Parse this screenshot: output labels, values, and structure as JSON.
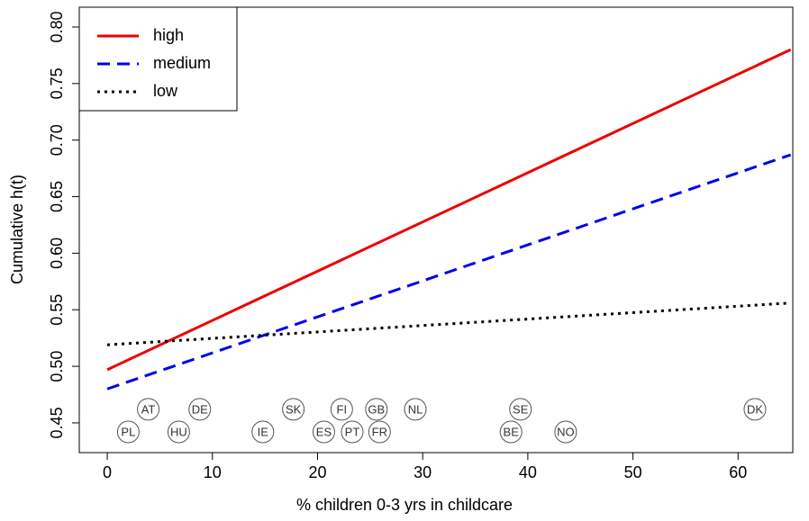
{
  "chart_data": {
    "type": "line",
    "x_label": "% children 0-3 yrs in childcare",
    "y_label": "Cumulative h(t)",
    "x": [
      0,
      65
    ],
    "series": [
      {
        "name": "high",
        "color": "#ee0000",
        "dash": "solid",
        "values": [
          0.497,
          0.78
        ]
      },
      {
        "name": "medium",
        "color": "#0000ee",
        "dash": "dashed",
        "values": [
          0.48,
          0.687
        ]
      },
      {
        "name": "low",
        "color": "#000000",
        "dash": "dotted",
        "values": [
          0.519,
          0.556
        ]
      }
    ],
    "points": [
      {
        "label": "AT",
        "x": 3.9,
        "y": 0.462
      },
      {
        "label": "DE",
        "x": 8.8,
        "y": 0.462
      },
      {
        "label": "SK",
        "x": 17.7,
        "y": 0.462
      },
      {
        "label": "FI",
        "x": 22.3,
        "y": 0.462
      },
      {
        "label": "GB",
        "x": 25.6,
        "y": 0.462
      },
      {
        "label": "NL",
        "x": 29.3,
        "y": 0.462
      },
      {
        "label": "SE",
        "x": 39.3,
        "y": 0.462
      },
      {
        "label": "DK",
        "x": 61.6,
        "y": 0.462
      },
      {
        "label": "PL",
        "x": 2.0,
        "y": 0.442
      },
      {
        "label": "HU",
        "x": 6.8,
        "y": 0.442
      },
      {
        "label": "IE",
        "x": 14.8,
        "y": 0.442
      },
      {
        "label": "ES",
        "x": 20.6,
        "y": 0.442
      },
      {
        "label": "PT",
        "x": 23.3,
        "y": 0.442
      },
      {
        "label": "FR",
        "x": 25.9,
        "y": 0.442
      },
      {
        "label": "BE",
        "x": 38.4,
        "y": 0.442
      },
      {
        "label": "NO",
        "x": 43.6,
        "y": 0.442
      }
    ],
    "xlim": [
      -2.66,
      65.2
    ],
    "ylim": [
      0.4237,
      0.8175
    ],
    "xticks": [
      0,
      10,
      20,
      30,
      40,
      50,
      60
    ],
    "yticks": [
      {
        "value": 0.45,
        "label": "0.45"
      },
      {
        "value": 0.5,
        "label": "0.50"
      },
      {
        "value": 0.55,
        "label": "0.55"
      },
      {
        "value": 0.6,
        "label": "0.60"
      },
      {
        "value": 0.65,
        "label": "0.65"
      },
      {
        "value": 0.7,
        "label": "0.70"
      },
      {
        "value": 0.75,
        "label": "0.75"
      },
      {
        "value": 0.8,
        "label": "0.80"
      }
    ],
    "legend": "top-left"
  }
}
